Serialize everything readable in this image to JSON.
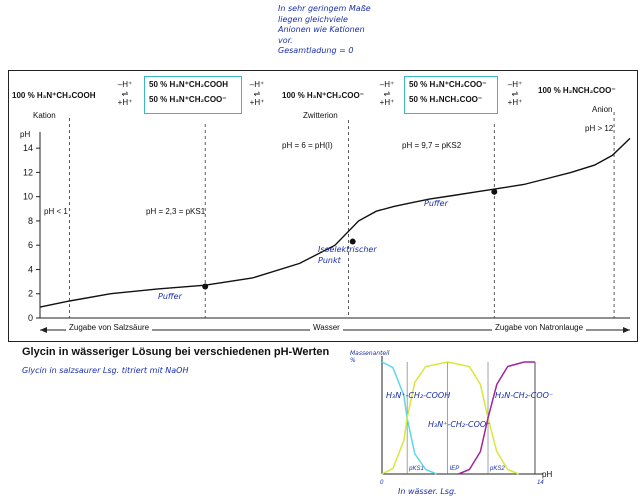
{
  "annotation_top": [
    "In sehr geringem Maße",
    "liegen gleichviele",
    "Anionen wie Kationen",
    "vor.",
    "Gesamtladung = 0"
  ],
  "species": {
    "s1": "100 % H₃N⁺CH₂COOH",
    "s1_label": "Kation",
    "s2a": "50 % H₃N⁺CH₂COOH",
    "s2b": "50 % H₃N⁺CH₂COO⁻",
    "s3": "100 % H₃N⁺CH₂COO⁻",
    "s3_label": "Zwitterion",
    "s4a": "50 % H₃N⁺CH₂COO⁻",
    "s4b": "50 % H₂NCH₂COO⁻",
    "s5": "100 % H₂NCH₂COO⁻",
    "s5_label": "Anion"
  },
  "equilibrium": {
    "top": "–H⁺",
    "bottom": "+H⁺"
  },
  "chart_data": [
    {
      "type": "line",
      "title": "Glycin in wässeriger Lösung bei verschiedenen pH-Werten",
      "ylabel": "pH",
      "yticks": [
        0,
        2,
        4,
        6,
        8,
        10,
        12,
        14
      ],
      "ylim": [
        0,
        15
      ],
      "xlim": [
        0,
        100
      ],
      "x": [
        0,
        5,
        12,
        20,
        28,
        36,
        44,
        50,
        54,
        57,
        60,
        63,
        66,
        70,
        74,
        78,
        82,
        86,
        90,
        94,
        97,
        100
      ],
      "y": [
        0.9,
        1.4,
        2.0,
        2.4,
        2.7,
        3.3,
        4.5,
        6.0,
        8.0,
        8.8,
        9.2,
        9.5,
        9.8,
        10.1,
        10.4,
        10.7,
        11.0,
        11.5,
        12.0,
        12.6,
        13.4,
        14.8
      ],
      "points": [
        {
          "x": 28,
          "y": 2.6,
          "label": "Puffer"
        },
        {
          "x": 53,
          "y": 6.3,
          "label": "Isoelektrischer Punkt"
        },
        {
          "x": 77,
          "y": 10.4,
          "label": "Puffer"
        }
      ],
      "annotations": {
        "ph_lt_1": "pH < 1",
        "pks1": "pH = 2,3 = pKS1",
        "ph6": "pH = 6 = pH(I)",
        "pks2": "pH = 9,7 = pKS2",
        "ph_gt_12": "pH > 12"
      },
      "xaxis_left": "Zugabe von Salzsäure",
      "xaxis_mid": "Wasser",
      "xaxis_right": "Zugabe von Natronlauge"
    },
    {
      "type": "line",
      "ylabel": "Massenanteil %",
      "xlabel": "pH",
      "xticks": [
        "0",
        "pKS1",
        "IEP",
        "pKS2",
        "14"
      ],
      "xlim": [
        0,
        14
      ],
      "ylim": [
        0,
        100
      ],
      "series": [
        {
          "name": "H₃N⁺-CH₂-COOH",
          "color": "#5fd7ea",
          "x": [
            0,
            1,
            2,
            2.3,
            3,
            4,
            5
          ],
          "y": [
            100,
            95,
            70,
            50,
            18,
            4,
            0
          ]
        },
        {
          "name": "H₃N⁺-CH₂-COO⁻",
          "color": "#d6e83a",
          "x": [
            0,
            1,
            2,
            2.3,
            3,
            4,
            6,
            8,
            9,
            9.7,
            10.5,
            11.5,
            12.5
          ],
          "y": [
            0,
            5,
            30,
            50,
            82,
            96,
            100,
            96,
            80,
            50,
            20,
            4,
            0
          ]
        },
        {
          "name": "H₂N-CH₂-COO⁻",
          "color": "#a0259e",
          "x": [
            7,
            8,
            9,
            9.7,
            10.5,
            11.5,
            13,
            14
          ],
          "y": [
            0,
            4,
            20,
            50,
            80,
            96,
            100,
            100
          ]
        }
      ]
    }
  ],
  "annotation_left": "Glycin in salzsaurer Lsg. titriert mit NaOH",
  "annotation_right": "In wässer. Lsg."
}
